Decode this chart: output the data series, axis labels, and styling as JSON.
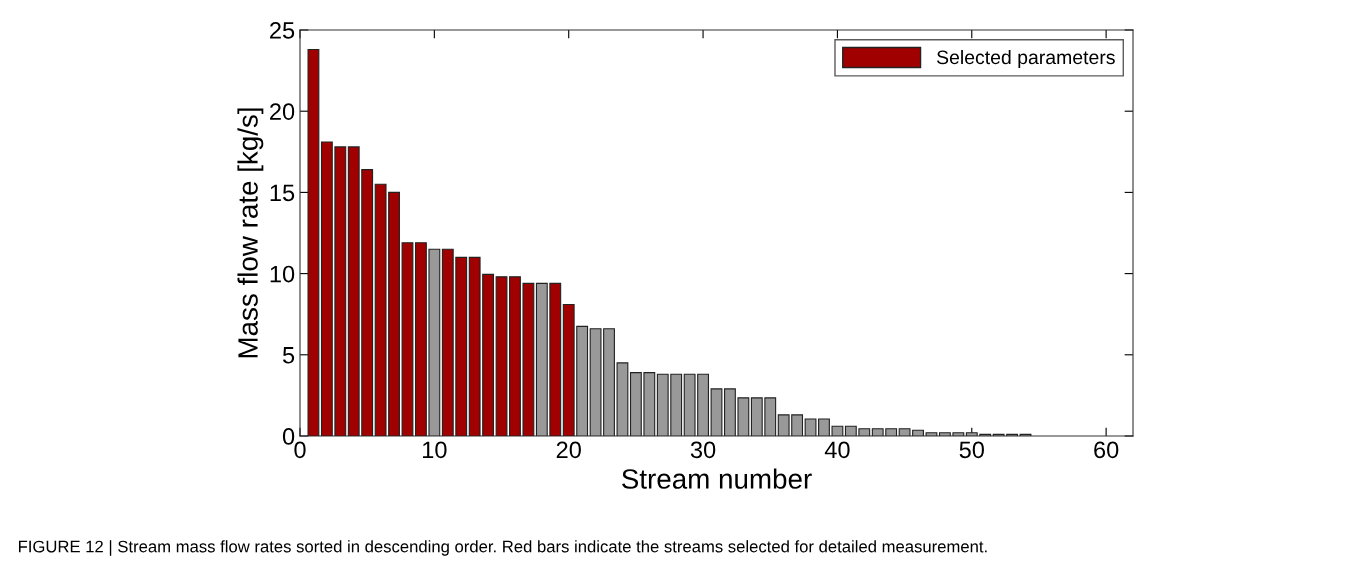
{
  "chart_data": {
    "type": "bar",
    "xlabel": "Stream number",
    "ylabel": "Mass flow rate [kg/s]",
    "x": [
      1,
      2,
      3,
      4,
      5,
      6,
      7,
      8,
      9,
      10,
      11,
      12,
      13,
      14,
      15,
      16,
      17,
      18,
      19,
      20,
      21,
      22,
      23,
      24,
      25,
      26,
      27,
      28,
      29,
      30,
      31,
      32,
      33,
      34,
      35,
      36,
      37,
      38,
      39,
      40,
      41,
      42,
      43,
      44,
      45,
      46,
      47,
      48,
      49,
      50,
      51,
      52,
      53,
      54
    ],
    "series": [
      {
        "name": "Selected parameters",
        "color": "#a00000",
        "values": [
          23.8,
          18.1,
          17.8,
          17.8,
          16.4,
          15.5,
          15.0,
          11.9,
          11.9,
          null,
          11.5,
          11.0,
          11.0,
          9.95,
          9.8,
          9.8,
          9.4,
          null,
          9.4,
          8.1,
          null,
          null,
          null,
          null,
          null,
          null,
          null,
          null,
          null,
          null,
          null,
          null,
          null,
          null,
          null,
          null,
          null,
          null,
          null,
          null,
          null,
          null,
          null,
          null,
          null,
          null,
          null,
          null,
          null,
          null,
          null,
          null,
          null,
          null
        ]
      },
      {
        "color": "#999999",
        "values": [
          null,
          null,
          null,
          null,
          null,
          null,
          null,
          null,
          null,
          11.5,
          null,
          null,
          null,
          null,
          null,
          null,
          null,
          9.4,
          null,
          null,
          6.75,
          6.6,
          6.6,
          4.5,
          3.9,
          3.9,
          3.8,
          3.8,
          3.8,
          3.8,
          2.9,
          2.9,
          2.35,
          2.35,
          2.35,
          1.3,
          1.3,
          1.05,
          1.05,
          0.6,
          0.6,
          0.45,
          0.45,
          0.45,
          0.45,
          0.35,
          0.2,
          0.2,
          0.2,
          0.2,
          0.1,
          0.1,
          0.1,
          0.1
        ]
      }
    ],
    "xlim": [
      0,
      62
    ],
    "xticks": [
      0,
      10,
      20,
      30,
      40,
      50,
      60
    ],
    "ylim": [
      0,
      25
    ],
    "yticks": [
      0,
      5,
      10,
      15,
      20,
      25
    ],
    "grid": false,
    "legend": "top right",
    "annotations": [
      "FIGURE 12 | Stream mass flow rates sorted in descending order. Red bars indicate the streams selected for detailed measurement."
    ]
  }
}
